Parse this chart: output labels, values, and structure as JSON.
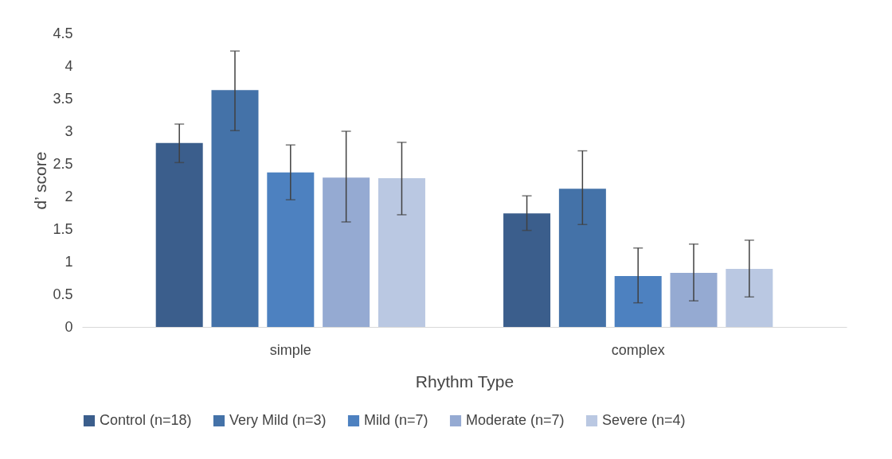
{
  "chart_data": {
    "type": "bar",
    "xlabel": "Rhythm Type",
    "ylabel": "d’ score",
    "categories": [
      "simple",
      "complex"
    ],
    "series": [
      {
        "name": "Control (n=18)",
        "color": "#3b5e8c",
        "values": [
          2.82,
          1.74
        ],
        "errors": [
          [
            2.52,
            3.11
          ],
          [
            1.48,
            2.01
          ]
        ]
      },
      {
        "name": "Very Mild (n=3)",
        "color": "#4472a8",
        "values": [
          3.63,
          2.12
        ],
        "errors": [
          [
            3.01,
            4.23
          ],
          [
            1.57,
            2.7
          ]
        ]
      },
      {
        "name": "Mild (n=7)",
        "color": "#4d81c0",
        "values": [
          2.37,
          0.78
        ],
        "errors": [
          [
            1.95,
            2.79
          ],
          [
            0.37,
            1.21
          ]
        ]
      },
      {
        "name": "Moderate (n=7)",
        "color": "#95aad2",
        "values": [
          2.29,
          0.83
        ],
        "errors": [
          [
            1.61,
            3.0
          ],
          [
            0.4,
            1.27
          ]
        ]
      },
      {
        "name": "Severe (n=4)",
        "color": "#bac8e2",
        "values": [
          2.28,
          0.89
        ],
        "errors": [
          [
            1.72,
            2.83
          ],
          [
            0.46,
            1.33
          ]
        ]
      }
    ],
    "ylim": [
      0,
      4.5
    ],
    "yticks": [
      0,
      0.5,
      1,
      1.5,
      2,
      2.5,
      3,
      3.5,
      4,
      4.5
    ],
    "grid": false,
    "legend": "bottom"
  }
}
